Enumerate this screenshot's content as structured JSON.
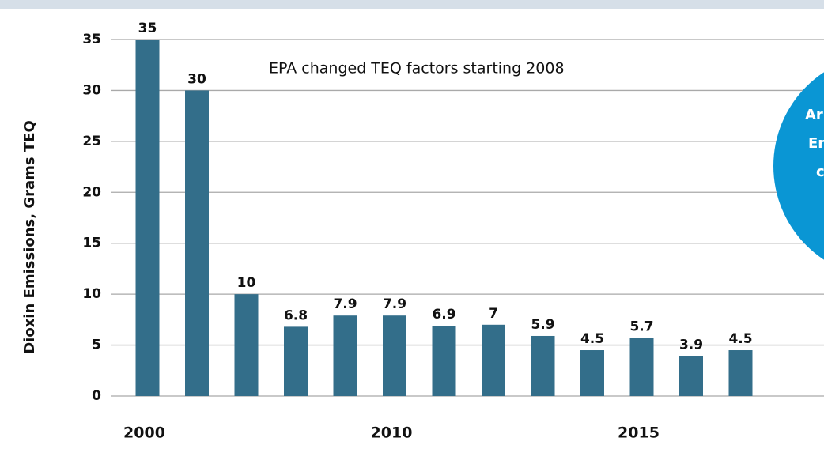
{
  "chart_data": {
    "type": "bar",
    "y_label": "Dioxin Emissions, Grams TEQ",
    "annotation": "EPA changed TEQ factors starting 2008",
    "callout_lines": [
      "Ar",
      "Er",
      "c"
    ],
    "categories": [
      "2000",
      null,
      null,
      null,
      null,
      "2010",
      null,
      null,
      null,
      null,
      "2015",
      null,
      null
    ],
    "values": [
      35,
      30,
      10,
      6.8,
      7.9,
      7.9,
      6.9,
      7,
      5.9,
      4.5,
      5.7,
      3.9,
      4.5
    ],
    "color": "#336e8a",
    "ylim": [
      0,
      35
    ],
    "yticks": [
      0,
      5,
      10,
      15,
      20,
      25,
      30,
      35
    ],
    "grid": true
  }
}
